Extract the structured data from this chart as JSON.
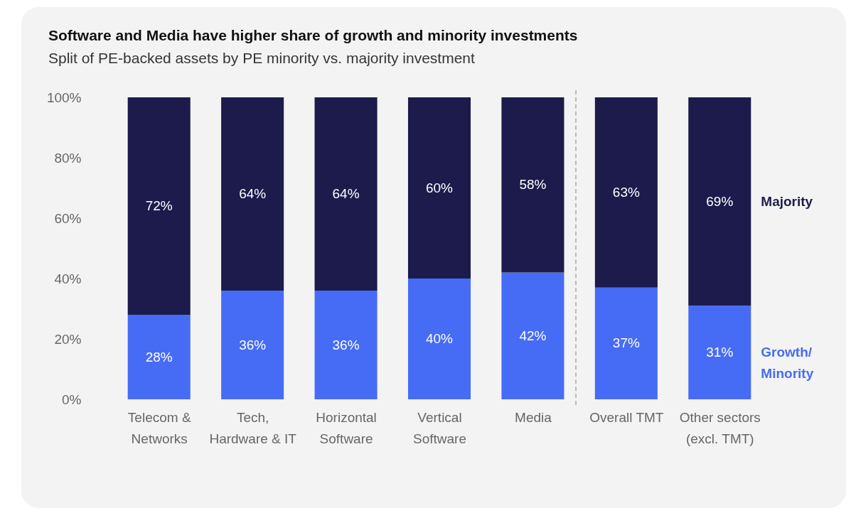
{
  "chart_data": {
    "type": "bar",
    "stacked": true,
    "title": "Software and Media have higher share of growth and minority investments",
    "subtitle": "Split of PE-backed assets by PE minority vs. majority investment",
    "categories": [
      "Telecom &\nNetworks",
      "Tech,\nHardware & IT",
      "Horizontal\nSoftware",
      "Vertical\nSoftware",
      "Media",
      "Overall TMT",
      "Other sectors\n(excl. TMT)"
    ],
    "series": [
      {
        "name": "Growth/\nMinority",
        "color": "#466cf5",
        "values": [
          28,
          36,
          36,
          40,
          42,
          37,
          31
        ],
        "value_labels": [
          "28%",
          "36%",
          "36%",
          "40%",
          "42%",
          "37%",
          "31%"
        ]
      },
      {
        "name": "Majority",
        "color": "#1c1b4b",
        "values": [
          72,
          64,
          64,
          60,
          58,
          63,
          69
        ],
        "value_labels": [
          "72%",
          "64%",
          "64%",
          "60%",
          "58%",
          "63%",
          "69%"
        ]
      }
    ],
    "ylim": [
      0,
      100
    ],
    "yticks": [
      {
        "value": 0,
        "label": "0%"
      },
      {
        "value": 20,
        "label": "20%"
      },
      {
        "value": 40,
        "label": "40%"
      },
      {
        "value": 60,
        "label": "60%"
      },
      {
        "value": 80,
        "label": "80%"
      },
      {
        "value": 100,
        "label": "100%"
      }
    ],
    "grid": false,
    "legend": "right"
  }
}
